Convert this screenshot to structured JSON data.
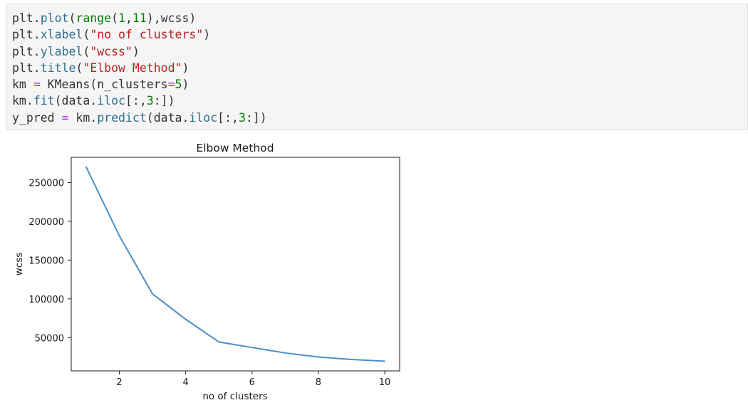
{
  "code_cell": {
    "lines": [
      [
        {
          "t": "plain",
          "v": "plt."
        },
        {
          "t": "fn",
          "v": "plot"
        },
        {
          "t": "plain",
          "v": "("
        },
        {
          "t": "bi",
          "v": "range"
        },
        {
          "t": "plain",
          "v": "("
        },
        {
          "t": "num",
          "v": "1"
        },
        {
          "t": "plain",
          "v": ","
        },
        {
          "t": "num",
          "v": "11"
        },
        {
          "t": "plain",
          "v": "),wcss)"
        }
      ],
      [
        {
          "t": "plain",
          "v": "plt."
        },
        {
          "t": "fn",
          "v": "xlabel"
        },
        {
          "t": "plain",
          "v": "("
        },
        {
          "t": "str",
          "v": "\"no of clusters\""
        },
        {
          "t": "plain",
          "v": ")"
        }
      ],
      [
        {
          "t": "plain",
          "v": "plt."
        },
        {
          "t": "fn",
          "v": "ylabel"
        },
        {
          "t": "plain",
          "v": "("
        },
        {
          "t": "str",
          "v": "\"wcss\""
        },
        {
          "t": "plain",
          "v": ")"
        }
      ],
      [
        {
          "t": "plain",
          "v": "plt."
        },
        {
          "t": "fn",
          "v": "title"
        },
        {
          "t": "plain",
          "v": "("
        },
        {
          "t": "str",
          "v": "\"Elbow Method\""
        },
        {
          "t": "plain",
          "v": ")"
        }
      ],
      [
        {
          "t": "plain",
          "v": "km "
        },
        {
          "t": "op",
          "v": "="
        },
        {
          "t": "plain",
          "v": " KMeans(n_clusters"
        },
        {
          "t": "op",
          "v": "="
        },
        {
          "t": "num",
          "v": "5"
        },
        {
          "t": "plain",
          "v": ")"
        }
      ],
      [
        {
          "t": "plain",
          "v": "km."
        },
        {
          "t": "fn",
          "v": "fit"
        },
        {
          "t": "plain",
          "v": "(data."
        },
        {
          "t": "fn",
          "v": "iloc"
        },
        {
          "t": "plain",
          "v": "[:,"
        },
        {
          "t": "num",
          "v": "3"
        },
        {
          "t": "plain",
          "v": ":])"
        }
      ],
      [
        {
          "t": "plain",
          "v": "y_pred "
        },
        {
          "t": "op",
          "v": "="
        },
        {
          "t": "plain",
          "v": " km."
        },
        {
          "t": "fn",
          "v": "predict"
        },
        {
          "t": "plain",
          "v": "(data."
        },
        {
          "t": "fn",
          "v": "iloc"
        },
        {
          "t": "plain",
          "v": "[:,"
        },
        {
          "t": "num",
          "v": "3"
        },
        {
          "t": "plain",
          "v": ":])"
        }
      ]
    ]
  },
  "chart_data": {
    "type": "line",
    "title": "Elbow Method",
    "xlabel": "no of clusters",
    "ylabel": "wcss",
    "x": [
      1,
      2,
      3,
      4,
      5,
      6,
      7,
      8,
      9,
      10
    ],
    "series": [
      {
        "values": [
          269981,
          181364,
          106349,
          73679,
          44448,
          37265,
          30260,
          25011,
          21850,
          19658
        ],
        "color": "#4a8fc7"
      }
    ],
    "xlim": [
      0.55,
      10.45
    ],
    "ylim": [
      7141,
      282498
    ],
    "xticks": [
      2,
      4,
      6,
      8,
      10
    ],
    "yticks": [
      50000,
      100000,
      150000,
      200000,
      250000
    ],
    "xtick_labels": [
      "2",
      "4",
      "6",
      "8",
      "10"
    ],
    "ytick_labels": [
      "50000",
      "100000",
      "150000",
      "200000",
      "250000"
    ],
    "grid": false,
    "legend": "none"
  }
}
